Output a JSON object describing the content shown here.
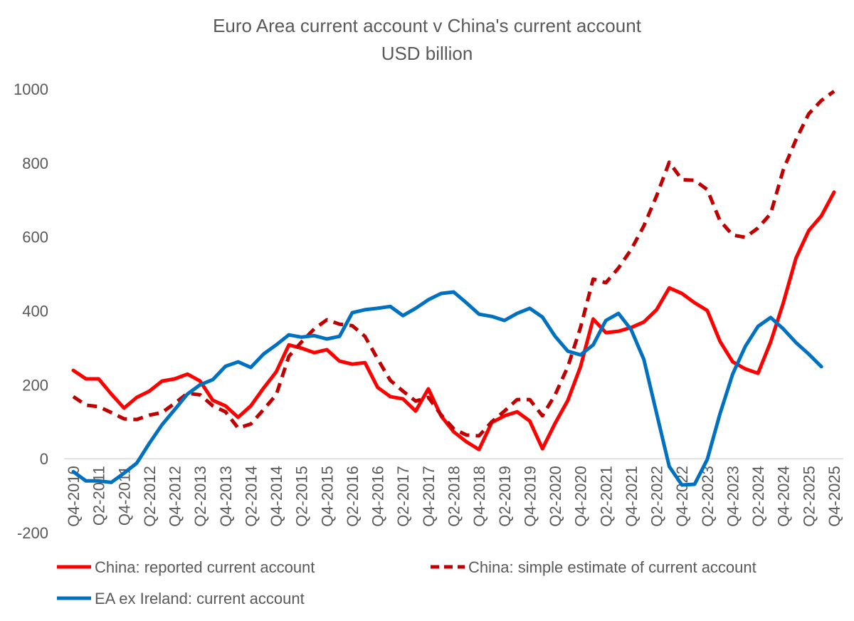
{
  "chart_data": {
    "type": "line",
    "title": "Euro Area current account v China's current account",
    "subtitle": "USD billion",
    "categories": [
      "Q4-2010",
      null,
      "Q2-2011",
      null,
      "Q4-2011",
      null,
      "Q2-2012",
      null,
      "Q4-2012",
      null,
      "Q2-2013",
      null,
      "Q4-2013",
      null,
      "Q2-2014",
      null,
      "Q4-2014",
      null,
      "Q2-2015",
      null,
      "Q4-2015",
      null,
      "Q2-2016",
      null,
      "Q4-2016",
      null,
      "Q2-2017",
      null,
      "Q4-2017",
      null,
      "Q2-2018",
      null,
      "Q4-2018",
      null,
      "Q2-2019",
      null,
      "Q4-2019",
      null,
      "Q2-2020",
      null,
      "Q4-2020",
      null,
      "Q2-2021",
      null,
      "Q4-2021",
      null,
      "Q2-2022",
      null,
      "Q4-2022",
      null,
      "Q2-2023",
      null,
      "Q4-2023",
      null,
      "Q2-2024",
      null,
      "Q4-2024",
      null,
      "Q2-2025",
      null,
      "Q4-2025"
    ],
    "series": [
      {
        "name": "China: reported current account",
        "color": "#ff0000",
        "dashed": false,
        "values": [
          239,
          216,
          216,
          175,
          137,
          166,
          183,
          210,
          216,
          229,
          210,
          158,
          143,
          112,
          143,
          191,
          235,
          308,
          299,
          287,
          295,
          264,
          256,
          260,
          193,
          168,
          162,
          129,
          189,
          116,
          73,
          46,
          25,
          98,
          116,
          127,
          102,
          27,
          96,
          158,
          249,
          378,
          341,
          345,
          355,
          370,
          403,
          462,
          447,
          422,
          401,
          318,
          262,
          243,
          231,
          316,
          422,
          543,
          617,
          657,
          721
        ]
      },
      {
        "name": "China: simple estimate of current account",
        "color": "#c00000",
        "dashed": true,
        "values": [
          168,
          145,
          141,
          125,
          108,
          106,
          118,
          125,
          150,
          177,
          173,
          143,
          127,
          83,
          94,
          133,
          173,
          277,
          316,
          351,
          376,
          364,
          360,
          331,
          270,
          212,
          183,
          156,
          166,
          119,
          81,
          64,
          62,
          100,
          129,
          160,
          160,
          116,
          173,
          249,
          355,
          486,
          476,
          516,
          566,
          630,
          711,
          802,
          755,
          753,
          728,
          644,
          605,
          599,
          624,
          663,
          782,
          863,
          933,
          969,
          994
        ]
      },
      {
        "name": "EA ex Ireland: current account",
        "color": "#0070c0",
        "dashed": false,
        "values": [
          -35,
          -60,
          -60,
          -64,
          -39,
          -12,
          42,
          92,
          133,
          175,
          200,
          214,
          250,
          262,
          247,
          283,
          308,
          335,
          329,
          333,
          324,
          331,
          395,
          403,
          407,
          412,
          387,
          407,
          430,
          447,
          451,
          422,
          391,
          385,
          374,
          393,
          407,
          383,
          331,
          291,
          281,
          308,
          374,
          393,
          349,
          268,
          123,
          -21,
          -71,
          -69,
          -2,
          121,
          229,
          304,
          358,
          382,
          351,
          314,
          283,
          249,
          null
        ]
      }
    ],
    "ylim": [
      -200,
      1000
    ],
    "yticks": [
      -200,
      0,
      200,
      400,
      600,
      800,
      1000
    ],
    "grid": false,
    "legend": "bottom"
  }
}
